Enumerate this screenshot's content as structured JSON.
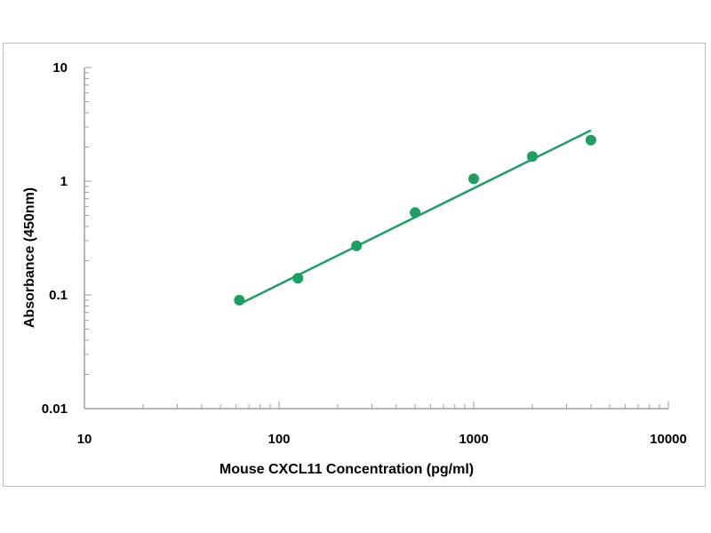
{
  "chart_data": {
    "type": "scatter",
    "title": "",
    "xlabel": "Mouse CXCL11 Concentration (pg/ml)",
    "ylabel": "Absorbance (450nm)",
    "x_scale": "log",
    "y_scale": "log",
    "xlim": [
      10,
      10000
    ],
    "ylim": [
      0.01,
      10
    ],
    "x_ticks": [
      "10",
      "100",
      "1000",
      "10000"
    ],
    "y_ticks": [
      "10",
      "1",
      "0.1",
      "0.01"
    ],
    "grid": false,
    "legend": "none",
    "series": [
      {
        "x": [
          62.5,
          125,
          250,
          500,
          1000,
          2000,
          4000
        ],
        "y": [
          0.09,
          0.14,
          0.27,
          0.53,
          1.05,
          1.65,
          2.3
        ]
      }
    ],
    "trendline": {
      "x": [
        62.5,
        4000
      ],
      "y": [
        0.083,
        2.8
      ]
    },
    "colors": {
      "marker": "#1f9e62",
      "line": "#1f9e62",
      "axis": "#9e9e9e"
    }
  }
}
